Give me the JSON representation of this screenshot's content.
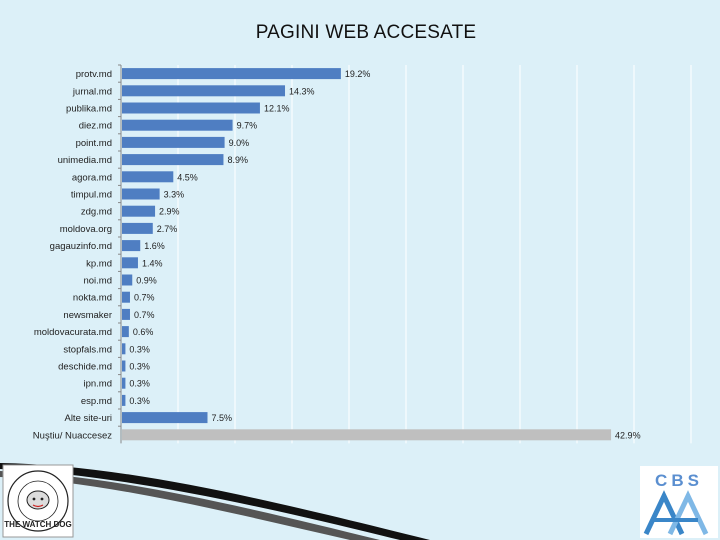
{
  "title": "PAGINI WEB ACCESATE",
  "chart_data": {
    "type": "bar",
    "orientation": "horizontal",
    "title": "PAGINI WEB ACCESATE",
    "categories": [
      "protv.md",
      "jurnal.md",
      "publika.md",
      "diez.md",
      "point.md",
      "unimedia.md",
      "agora.md",
      "timpul.md",
      "zdg.md",
      "moldova.org",
      "gagauzinfo.md",
      "kp.md",
      "noi.md",
      "nokta.md",
      "newsmaker",
      "moldovacurata.md",
      "stopfals.md",
      "deschide.md",
      "ipn.md",
      "esp.md",
      "Alte site-uri",
      "Nuştiu/ Nuaccesez"
    ],
    "values": [
      19.2,
      14.3,
      12.1,
      9.7,
      9.0,
      8.9,
      4.5,
      3.3,
      2.9,
      2.7,
      1.6,
      1.4,
      0.9,
      0.7,
      0.7,
      0.6,
      0.3,
      0.3,
      0.3,
      0.3,
      7.5,
      42.9
    ],
    "value_labels": [
      "19.2%",
      "14.3%",
      "12.1%",
      "9.7%",
      "9.0%",
      "8.9%",
      "4.5%",
      "3.3%",
      "2.9%",
      "2.7%",
      "1.6%",
      "1.4%",
      "0.9%",
      "0.7%",
      "0.7%",
      "0.6%",
      "0.3%",
      "0.3%",
      "0.3%",
      "0.3%",
      "7.5%",
      "42.9%"
    ],
    "xlim": [
      0,
      50
    ],
    "grid": true,
    "legend": "none",
    "colors": {
      "bar": "#4f7ec2",
      "last_bar": "#bfbfbf",
      "grid": "#ffffff"
    }
  },
  "logos": {
    "left_text": "THE WATCH DOG",
    "right_text": "CBS"
  }
}
